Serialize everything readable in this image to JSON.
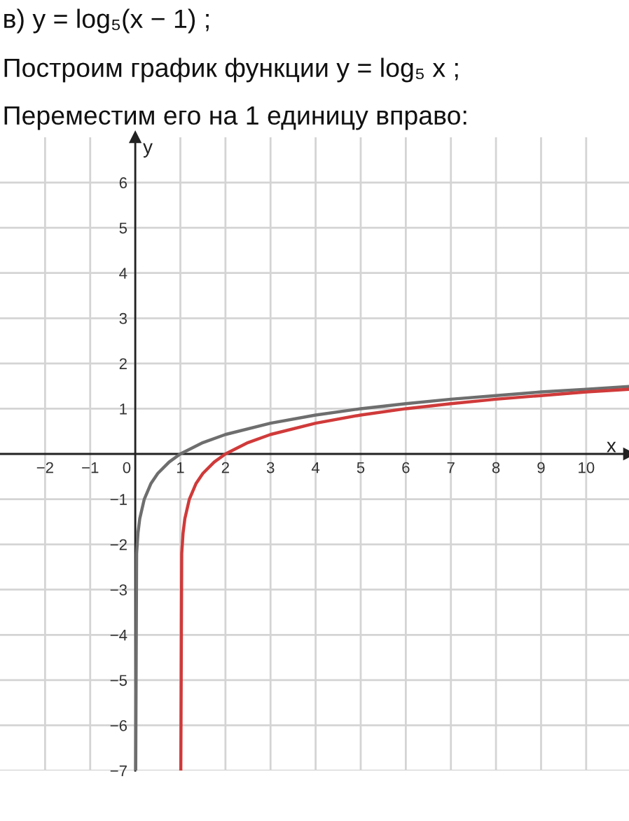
{
  "chart_data": {
    "type": "line",
    "title": "в) y = log₅(x − 1) ;",
    "subtitle": "Построим график функции y = log₅ x ;",
    "annotations": [
      "Переместим его на 1 единицу вправо:"
    ],
    "xlabel": "x",
    "ylabel": "y",
    "series": [
      {
        "color": "#6e6e6e",
        "x": [
          0.01,
          0.03,
          0.06,
          0.1,
          0.2,
          0.35,
          0.5,
          0.75,
          1,
          1.5,
          2,
          3,
          4,
          5,
          6,
          7,
          8,
          9,
          10,
          10.95
        ],
        "values": [
          -7,
          -2.2,
          -1.75,
          -1.43,
          -1,
          -0.65,
          -0.43,
          -0.18,
          0,
          0.25,
          0.43,
          0.68,
          0.86,
          1,
          1.11,
          1.21,
          1.29,
          1.37,
          1.43,
          1.49
        ]
      },
      {
        "color": "#d03a3a",
        "x": [
          1.01,
          1.03,
          1.06,
          1.1,
          1.2,
          1.35,
          1.5,
          1.75,
          2,
          2.5,
          3,
          4,
          5,
          6,
          7,
          8,
          9,
          10,
          10.95
        ],
        "values": [
          -7,
          -2.2,
          -1.75,
          -1.43,
          -1,
          -0.65,
          -0.43,
          -0.18,
          0,
          0.25,
          0.43,
          0.68,
          0.86,
          1,
          1.11,
          1.21,
          1.29,
          1.37,
          1.43
        ]
      }
    ],
    "xlim": [
      -3,
      10.95
    ],
    "ylim": [
      -7,
      7
    ],
    "xticks": [
      {
        "value": -2,
        "label": "−2"
      },
      {
        "value": -1,
        "label": "−1"
      },
      0,
      1,
      2,
      3,
      4,
      5,
      6,
      7,
      8,
      9,
      10
    ],
    "yticks": [
      {
        "value": -7,
        "label": "−7"
      },
      {
        "value": -6,
        "label": "−6"
      },
      {
        "value": -5,
        "label": "−5"
      },
      {
        "value": -4,
        "label": "−4"
      },
      {
        "value": -3,
        "label": "−3"
      },
      {
        "value": -2,
        "label": "−2"
      },
      {
        "value": -1,
        "label": "−1"
      },
      1,
      2,
      3,
      4,
      5,
      6
    ],
    "grid": true
  }
}
